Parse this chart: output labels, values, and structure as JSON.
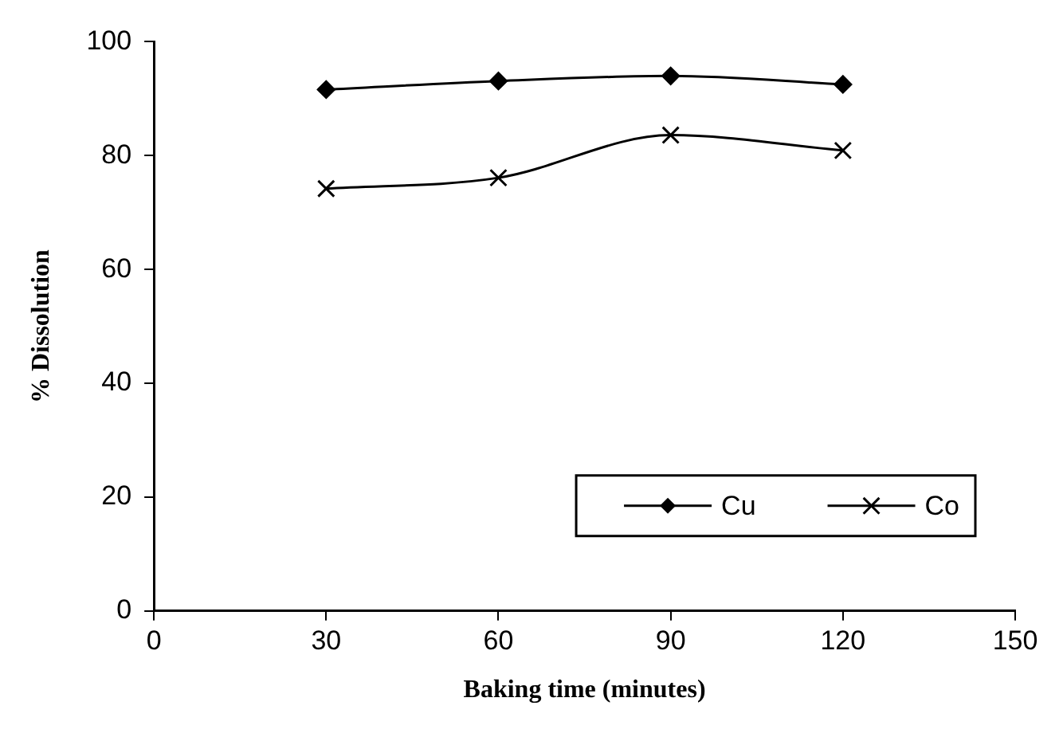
{
  "chart_data": {
    "type": "line",
    "xlabel": "Baking time (minutes)",
    "ylabel": "% Dissolution",
    "x": [
      30,
      60,
      90,
      120
    ],
    "series": [
      {
        "name": "Cu",
        "color": "#000000",
        "marker": "diamond",
        "values": [
          91.6,
          93.1,
          94.0,
          92.5
        ]
      },
      {
        "name": "Co",
        "color": "#000000",
        "marker": "cross",
        "values": [
          74.2,
          76.1,
          83.6,
          80.9
        ]
      }
    ],
    "xlim": [
      0,
      150
    ],
    "xticks": [
      0,
      30,
      60,
      90,
      120,
      150
    ],
    "ylim": [
      0,
      100
    ],
    "yticks": [
      0,
      20,
      40,
      60,
      80,
      100
    ],
    "grid": false,
    "legend": "bottom right",
    "line_style": "solid"
  }
}
